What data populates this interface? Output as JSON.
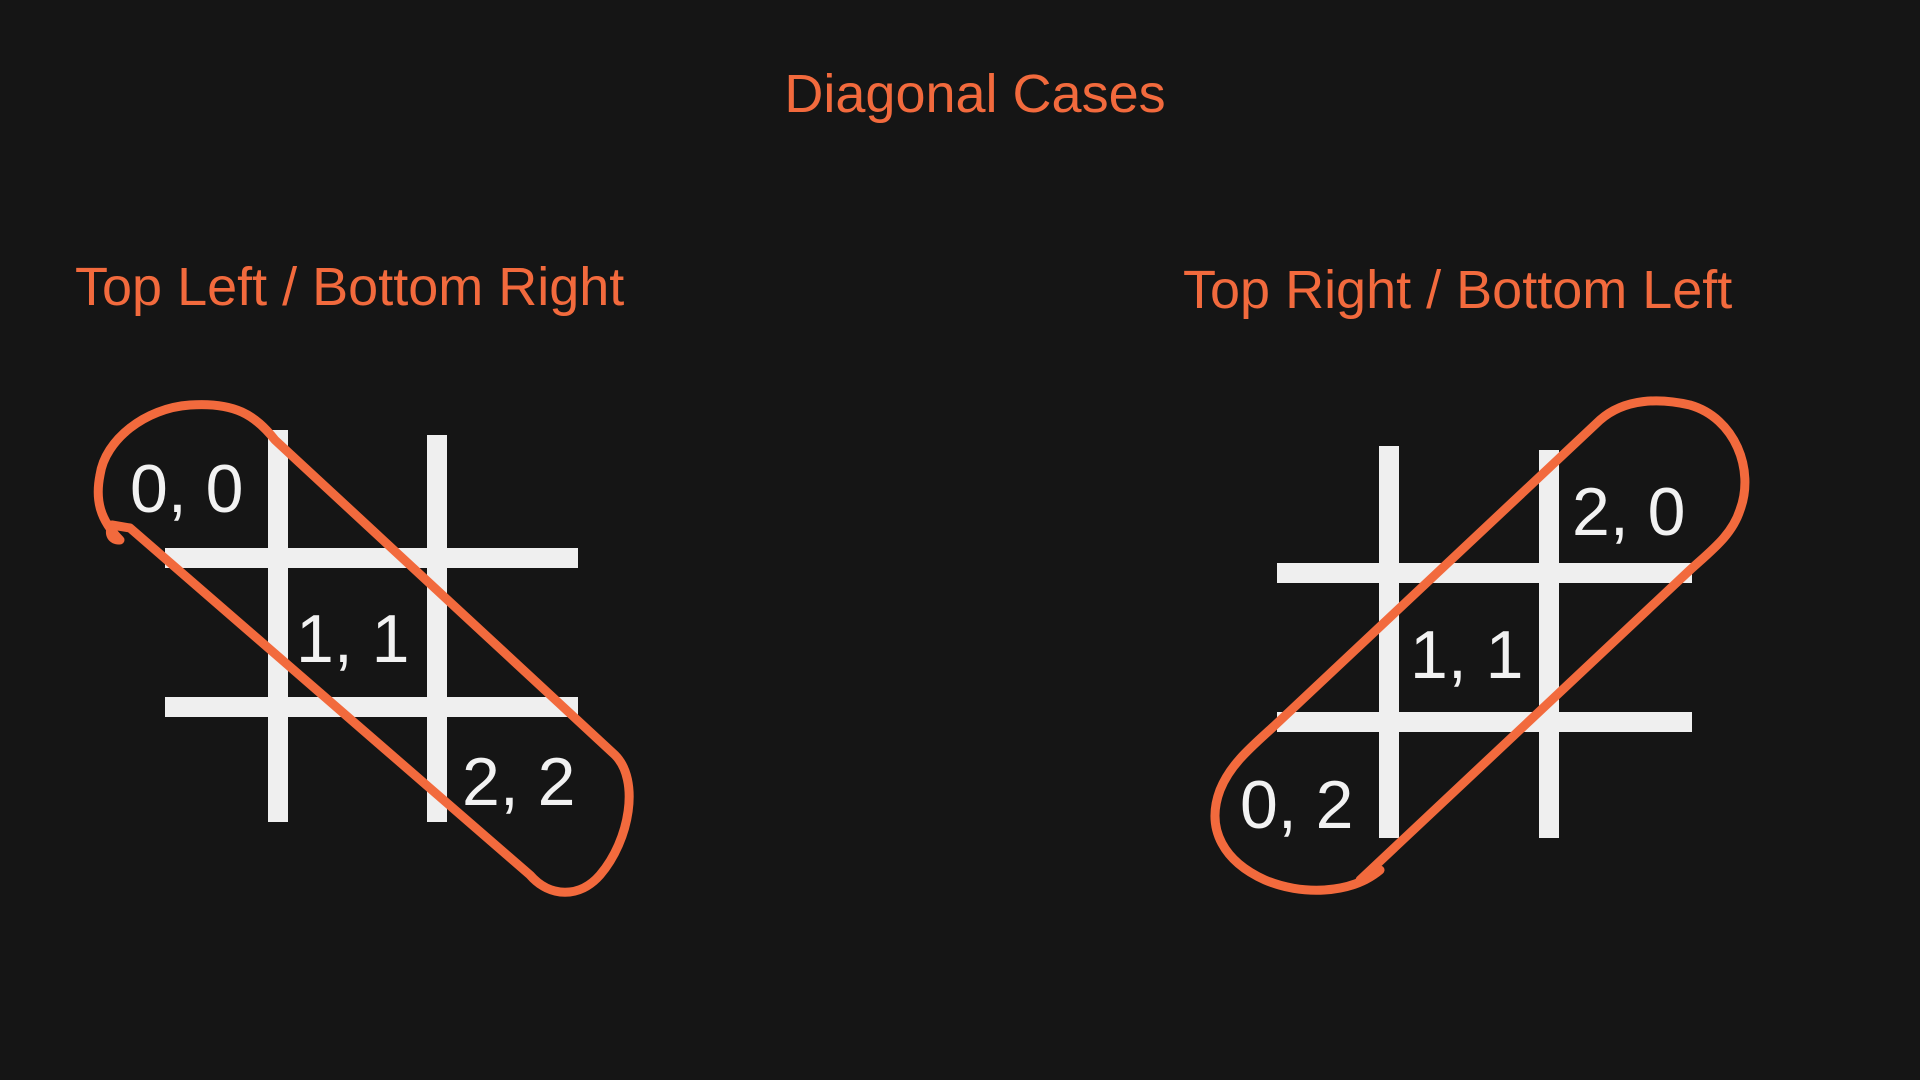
{
  "slide": {
    "title": "Diagonal Cases",
    "colors": {
      "background": "#151515",
      "accent": "#f26a3d",
      "grid": "#efefef",
      "text": "#f2f2f2"
    }
  },
  "left_diagram": {
    "heading": "Top Left / Bottom Right",
    "cells": [
      {
        "label": "0, 0"
      },
      {
        "label": "1, 1"
      },
      {
        "label": "2, 2"
      }
    ]
  },
  "right_diagram": {
    "heading": "Top Right / Bottom Left",
    "cells": [
      {
        "label": "2, 0"
      },
      {
        "label": "1, 1"
      },
      {
        "label": "0, 2"
      }
    ]
  }
}
